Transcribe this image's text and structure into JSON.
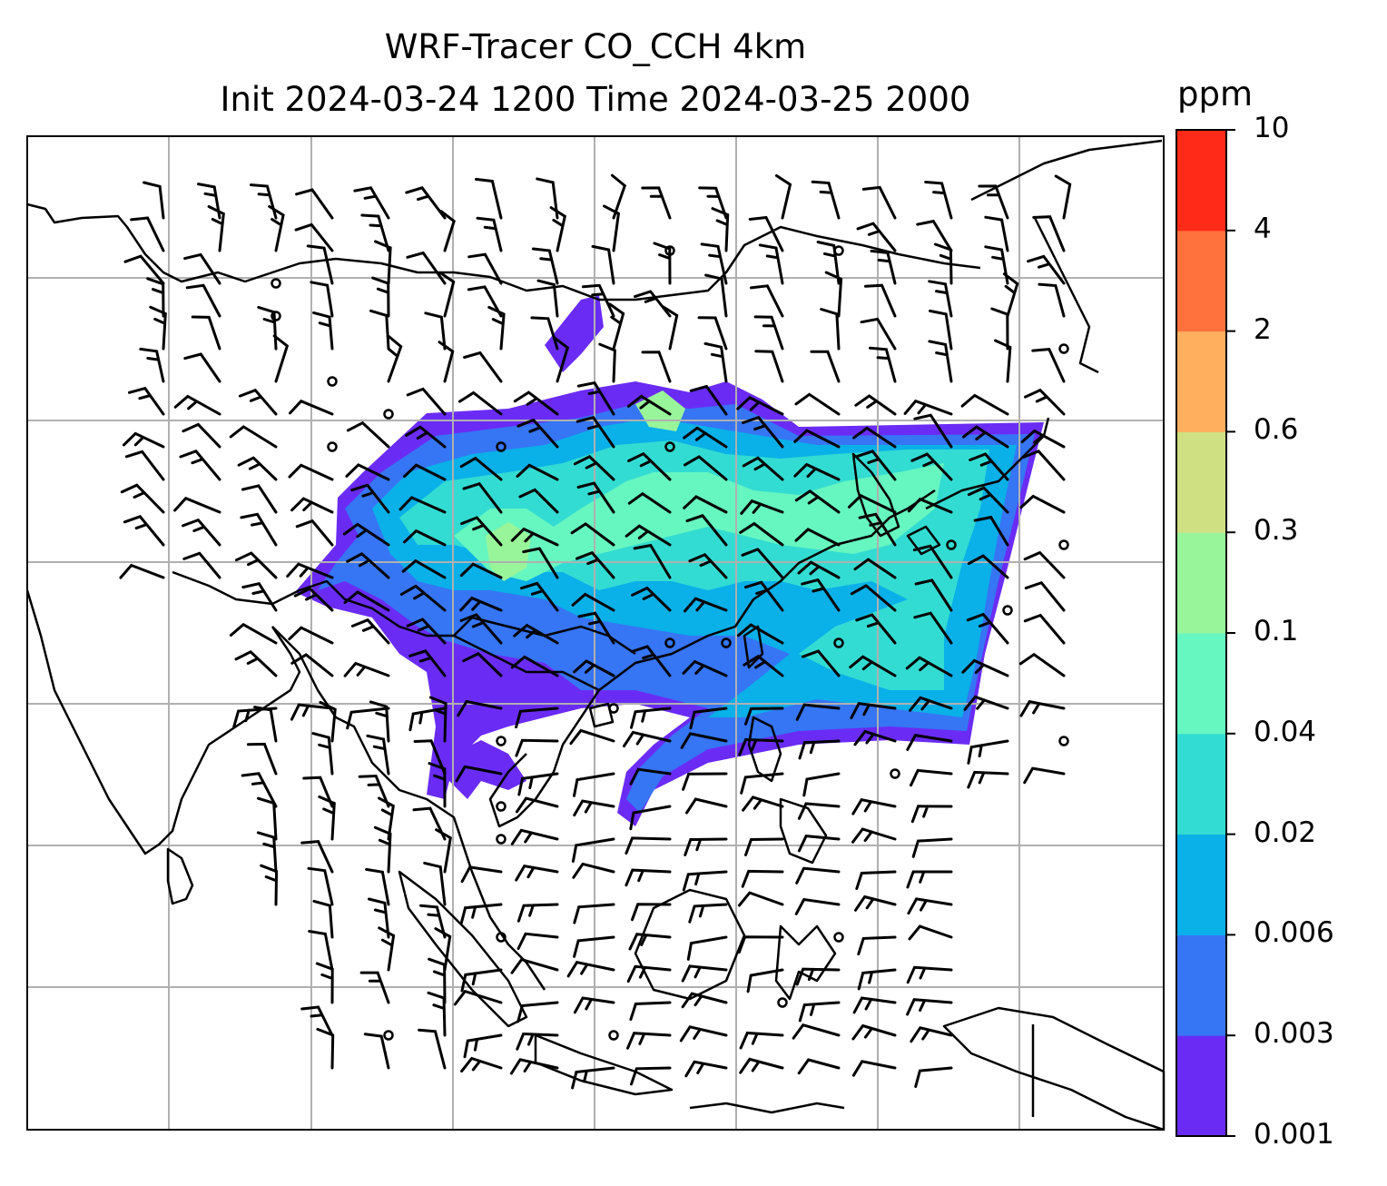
{
  "title": {
    "line1": "WRF-Tracer CO_CCH 4km",
    "line2": "Init 2024-03-24 1200 Time 2024-03-25 2000"
  },
  "colorbar": {
    "unit": "ppm",
    "labels": [
      "0.001",
      "0.003",
      "0.006",
      "0.02",
      "0.04",
      "0.1",
      "0.3",
      "0.6",
      "2",
      "4",
      "10"
    ],
    "colors": [
      "#6a2cf5",
      "#3675f4",
      "#0ab0e8",
      "#33dcd2",
      "#66f6c0",
      "#99f59a",
      "#cfe082",
      "#ffaf5e",
      "#ff723d",
      "#ff2a17"
    ]
  },
  "map": {
    "coastline_color": "#000000",
    "gridline_color": "#b0b0b0",
    "wind_barb_color": "#000000"
  }
}
